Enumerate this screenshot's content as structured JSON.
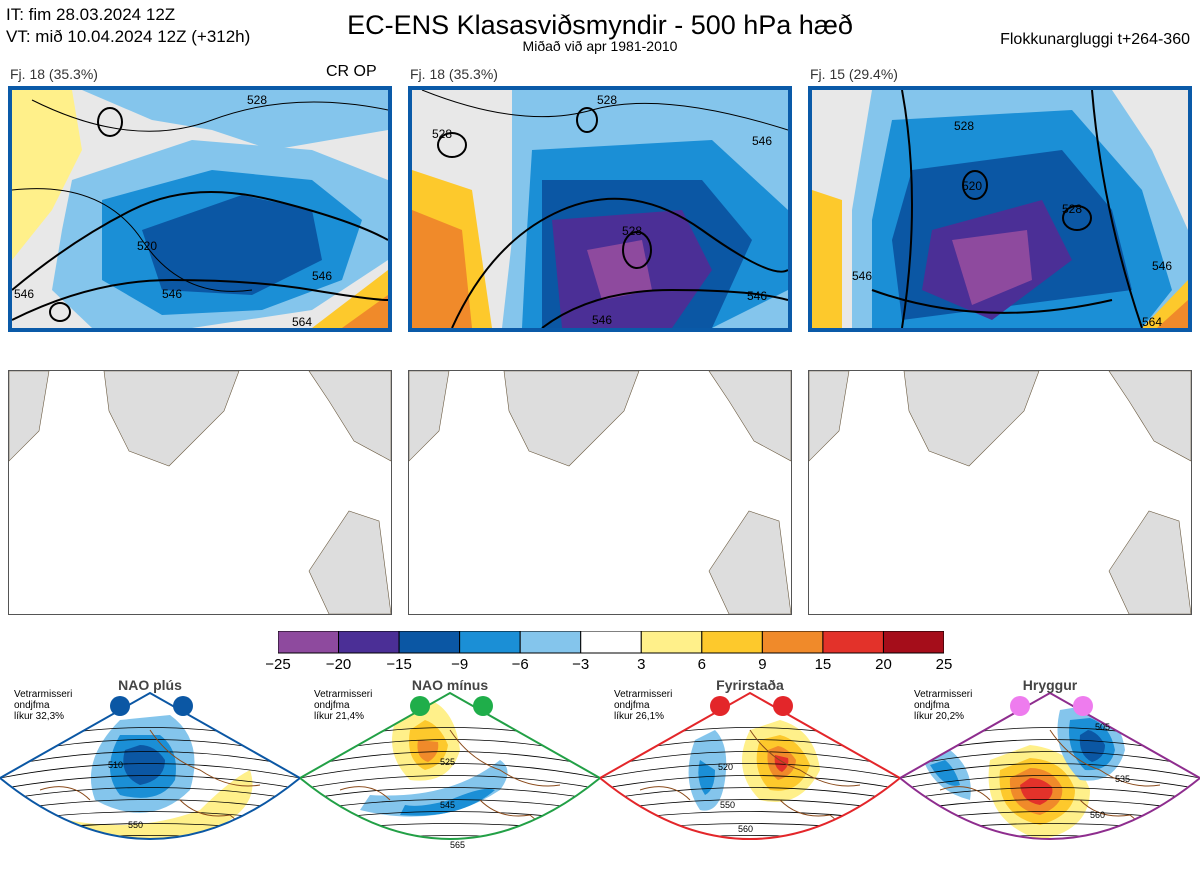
{
  "header": {
    "it_line": "IT: fim 28.03.2024 12Z",
    "vt_line": "VT: mið 10.04.2024 12Z  (+312h)",
    "title": "EC-ENS Klasasviðsmyndir - 500 hPa hæð",
    "subtitle": "Miðað við apr 1981-2010",
    "window": "Flokkunargluggi t+264-360"
  },
  "panels": [
    {
      "label": "Fj. 18 (35.3%)",
      "tag": "CR OP",
      "contours": [
        "520",
        "528",
        "546",
        "546",
        "546",
        "564"
      ]
    },
    {
      "label": "Fj. 18 (35.3%)",
      "tag": "",
      "contours": [
        "528",
        "528",
        "528",
        "546",
        "546",
        "546"
      ]
    },
    {
      "label": "Fj. 15 (29.4%)",
      "tag": "",
      "contours": [
        "520",
        "528",
        "528",
        "546",
        "546",
        "564"
      ]
    }
  ],
  "colorbar": {
    "ticks": [
      "−25",
      "−20",
      "−15",
      "−9",
      "−6",
      "−3",
      "3",
      "6",
      "9",
      "15",
      "20",
      "25"
    ],
    "colors": [
      "#8e4a9e",
      "#4b2f96",
      "#0b57a4",
      "#1b8fd6",
      "#84c5ec",
      "#ffffff",
      "#fff08a",
      "#fdc92c",
      "#f08a2a",
      "#e3322a",
      "#a50d1a"
    ]
  },
  "regimes": [
    {
      "name": "NAO plús",
      "note": [
        "Vetrarmisseri",
        "ondjfma",
        "líkur 32,3%"
      ],
      "dot_color": "#0b57a4",
      "frame_color": "#0b57a4",
      "contours": [
        "510",
        "550"
      ]
    },
    {
      "name": "NAO mínus",
      "note": [
        "Vetrarmisseri",
        "ondjfma",
        "líkur 21,4%"
      ],
      "dot_color": "#1fae4a",
      "frame_color": "#22a046",
      "contours": [
        "525",
        "545",
        "565"
      ]
    },
    {
      "name": "Fyrirstaða",
      "note": [
        "Vetrarmisseri",
        "ondjfma",
        "líkur 26,1%"
      ],
      "dot_color": "#e3262a",
      "frame_color": "#e3262a",
      "contours": [
        "520",
        "550",
        "560"
      ]
    },
    {
      "name": "Hryggur",
      "note": [
        "Vetrarmisseri",
        "ondjfma",
        "líkur 20,2%"
      ],
      "dot_color": "#ee7cee",
      "frame_color": "#8e2d8e",
      "contours": [
        "505",
        "535",
        "560"
      ]
    }
  ],
  "chart_data": [
    {
      "type": "heatmap",
      "title": "Fj. 18 (35.3%)",
      "annotation": "CR OP",
      "contour_levels": [
        520,
        528,
        546,
        546,
        546,
        564
      ]
    },
    {
      "type": "heatmap",
      "title": "Fj. 18 (35.3%)",
      "contour_levels": [
        528,
        528,
        528,
        546,
        546,
        546
      ]
    },
    {
      "type": "heatmap",
      "title": "Fj. 15 (29.4%)",
      "contour_levels": [
        520,
        528,
        528,
        546,
        546,
        564
      ]
    },
    {
      "type": "heatmap",
      "title": "NAO plús",
      "contour_levels": [
        510,
        550
      ]
    },
    {
      "type": "heatmap",
      "title": "NAO mínus",
      "contour_levels": [
        525,
        545,
        565
      ]
    },
    {
      "type": "heatmap",
      "title": "Fyrirstaða",
      "contour_levels": [
        520,
        550,
        560
      ]
    },
    {
      "type": "heatmap",
      "title": "Hryggur",
      "contour_levels": [
        505,
        535,
        560
      ]
    }
  ]
}
